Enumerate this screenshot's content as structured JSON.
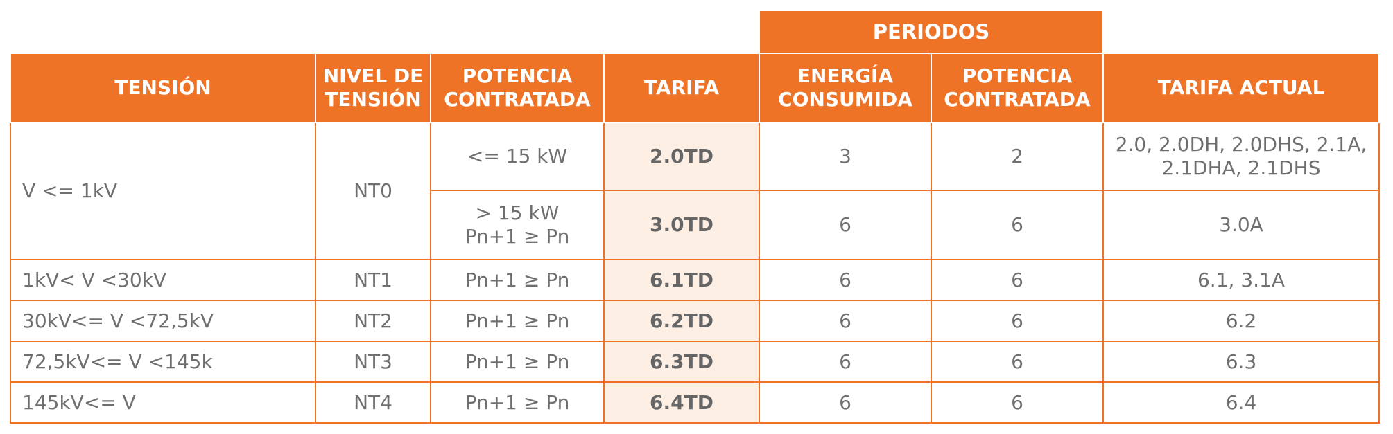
{
  "header": {
    "periods_label": "PERIODOS",
    "columns": {
      "tension": "TENSIÓN",
      "nivel": [
        "NIVEL DE",
        "TENSIÓN"
      ],
      "potencia": [
        "POTENCIA",
        "CONTRATADA"
      ],
      "tarifa": "TARIFA",
      "energia": [
        "ENERGÍA",
        "CONSUMIDA"
      ],
      "potencia_periodos": [
        "POTENCIA",
        "CONTRATADA"
      ],
      "tarifa_actual": "TARIFA ACTUAL"
    }
  },
  "rows": [
    {
      "tension": "V <= 1kV",
      "nivel": "NT0",
      "potencia": [
        "<= 15 kW"
      ],
      "tarifa": "2.0TD",
      "energia": "3",
      "potencia_p": "2",
      "actual": [
        "2.0, 2.0DH, 2.0DHS, 2.1A,",
        "2.1DHA, 2.1DHS"
      ]
    },
    {
      "potencia": [
        "> 15 kW",
        "Pn+1 ≥ Pn"
      ],
      "tarifa": "3.0TD",
      "energia": "6",
      "potencia_p": "6",
      "actual": [
        "3.0A"
      ]
    },
    {
      "tension": "1kV< V <30kV",
      "nivel": "NT1",
      "potencia": [
        "Pn+1 ≥ Pn"
      ],
      "tarifa": "6.1TD",
      "energia": "6",
      "potencia_p": "6",
      "actual": [
        "6.1, 3.1A"
      ]
    },
    {
      "tension": "30kV<= V <72,5kV",
      "nivel": "NT2",
      "potencia": [
        "Pn+1 ≥ Pn"
      ],
      "tarifa": "6.2TD",
      "energia": "6",
      "potencia_p": "6",
      "actual": [
        "6.2"
      ]
    },
    {
      "tension": "72,5kV<= V <145k",
      "nivel": "NT3",
      "potencia": [
        "Pn+1 ≥ Pn"
      ],
      "tarifa": "6.3TD",
      "energia": "6",
      "potencia_p": "6",
      "actual": [
        "6.3"
      ]
    },
    {
      "tension": "145kV<= V",
      "nivel": "NT4",
      "potencia": [
        "Pn+1 ≥ Pn"
      ],
      "tarifa": "6.4TD",
      "energia": "6",
      "potencia_p": "6",
      "actual": [
        "6.4"
      ]
    }
  ],
  "colors": {
    "accent": "#EE7326",
    "highlight": "#FDEFE4",
    "text": "#6f6f6f"
  }
}
